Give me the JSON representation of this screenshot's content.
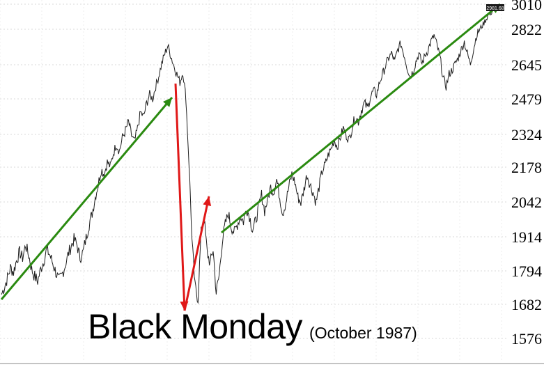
{
  "chart_data": {
    "type": "line",
    "y_ticks": [
      3010,
      2822,
      2645,
      2479,
      2324,
      2178,
      2042,
      1914,
      1794,
      1682,
      1576
    ],
    "ylim": [
      1540,
      3010
    ],
    "last_value_label": "2981.68",
    "grid": true,
    "series": [
      {
        "values": [
          1715,
          1740,
          1770,
          1805,
          1790,
          1830,
          1860,
          1840,
          1885,
          1850,
          1800,
          1775,
          1760,
          1800,
          1830,
          1870,
          1850,
          1820,
          1790,
          1760,
          1780,
          1810,
          1850,
          1880,
          1905,
          1885,
          1840,
          1860,
          1910,
          1960,
          2000,
          2060,
          2110,
          2170,
          2150,
          2200,
          2180,
          2240,
          2280,
          2250,
          2310,
          2340,
          2380,
          2320,
          2290,
          2350,
          2420,
          2400,
          2460,
          2500,
          2480,
          2540,
          2590,
          2650,
          2700,
          2740,
          2690,
          2640,
          2600,
          2560,
          2610,
          2480,
          2200,
          1900,
          1740,
          1700,
          1930,
          1980,
          1860,
          1820,
          1870,
          1720,
          1780,
          1900,
          1960,
          2000,
          1950,
          1930,
          1960,
          1990,
          1970,
          2020,
          1990,
          1940,
          1970,
          2020,
          2070,
          2010,
          2050,
          2100,
          2080,
          2130,
          2060,
          2000,
          2040,
          2100,
          2150,
          2120,
          2060,
          2040,
          2090,
          2150,
          2110,
          2080,
          2040,
          2100,
          2160,
          2190,
          2230,
          2260,
          2300,
          2270,
          2310,
          2350,
          2320,
          2300,
          2360,
          2400,
          2380,
          2430,
          2460,
          2440,
          2490,
          2520,
          2500,
          2560,
          2600,
          2640,
          2680,
          2700,
          2660,
          2720,
          2750,
          2700,
          2640,
          2590,
          2610,
          2660,
          2700,
          2650,
          2690,
          2720,
          2760,
          2790,
          2740,
          2680,
          2580,
          2540,
          2600,
          2620,
          2650,
          2680,
          2720,
          2760,
          2700,
          2650,
          2720,
          2790,
          2820,
          2850,
          2890,
          2930,
          2950,
          2981.68
        ]
      }
    ]
  },
  "caption": {
    "title": "Black Monday",
    "subtitle": "(October 1987)"
  },
  "colors": {
    "price": "#1e1e1e",
    "trend_up": "#2a8a10",
    "crash": "#e01818",
    "grid": "#d8d8d8",
    "last_label_bg": "#1a1a1a"
  }
}
